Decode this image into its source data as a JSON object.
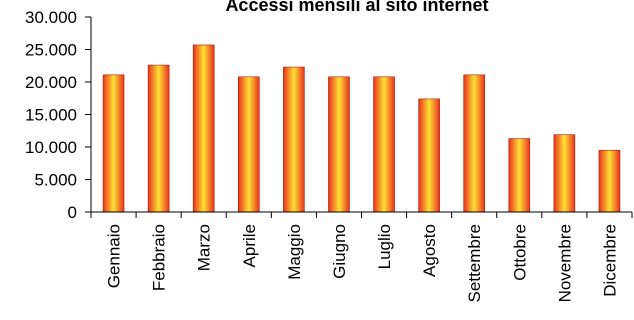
{
  "chart_data": {
    "type": "bar",
    "title": "Accessi mensili al sito internet",
    "xlabel": "",
    "ylabel": "",
    "categories": [
      "Gennaio",
      "Febbraio",
      "Marzo",
      "Aprile",
      "Maggio",
      "Giugno",
      "Luglio",
      "Agosto",
      "Settembre",
      "Ottobre",
      "Novembre",
      "Dicembre"
    ],
    "values": [
      21100,
      22600,
      25700,
      20800,
      22300,
      20800,
      20800,
      17400,
      21100,
      11300,
      11900,
      9500
    ],
    "ylim": [
      0,
      30000
    ],
    "y_ticks": [
      0,
      5000,
      10000,
      15000,
      20000,
      25000,
      30000
    ],
    "y_tick_labels": [
      "0",
      "5.000",
      "10.000",
      "15.000",
      "20.000",
      "25.000",
      "30.000"
    ],
    "grid": false,
    "legend": "none",
    "colors": {
      "bar_edge": "#e8321e",
      "bar_center": "#ffe033",
      "bar_outline": "#b01e0a",
      "axis": "#000000"
    }
  }
}
